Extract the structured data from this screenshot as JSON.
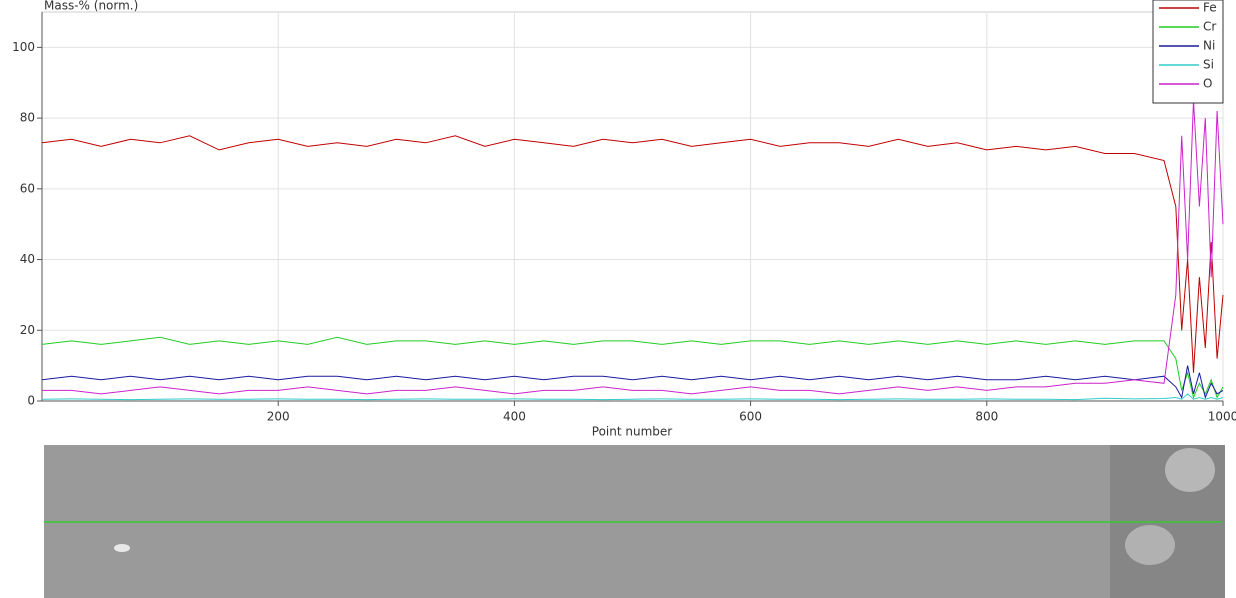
{
  "chart_data": {
    "type": "line",
    "title": "Mass-% (norm.)",
    "x_label": "Point number",
    "x": [
      0,
      25,
      50,
      75,
      100,
      125,
      150,
      175,
      200,
      225,
      250,
      275,
      300,
      325,
      350,
      375,
      400,
      425,
      450,
      475,
      500,
      525,
      550,
      575,
      600,
      625,
      650,
      675,
      700,
      725,
      750,
      775,
      800,
      825,
      850,
      875,
      900,
      925,
      950,
      960,
      965,
      970,
      975,
      980,
      985,
      990,
      995,
      1000
    ],
    "series": [
      {
        "name": "Fe",
        "color": "#c00000",
        "values": [
          73,
          74,
          72,
          74,
          73,
          75,
          71,
          73,
          74,
          72,
          73,
          72,
          74,
          73,
          75,
          72,
          74,
          73,
          72,
          74,
          73,
          74,
          72,
          73,
          74,
          72,
          73,
          73,
          72,
          74,
          72,
          73,
          71,
          72,
          71,
          72,
          70,
          70,
          68,
          55,
          20,
          40,
          8,
          35,
          15,
          45,
          12,
          30
        ]
      },
      {
        "name": "Cr",
        "color": "#22cc22",
        "values": [
          16,
          17,
          16,
          17,
          18,
          16,
          17,
          16,
          17,
          16,
          18,
          16,
          17,
          17,
          16,
          17,
          16,
          17,
          16,
          17,
          17,
          16,
          17,
          16,
          17,
          17,
          16,
          17,
          16,
          17,
          16,
          17,
          16,
          17,
          16,
          17,
          16,
          17,
          17,
          12,
          3,
          8,
          1,
          5,
          2,
          6,
          1,
          4
        ]
      },
      {
        "name": "Ni",
        "color": "#1a1aa0",
        "values": [
          6,
          7,
          6,
          7,
          6,
          7,
          6,
          7,
          6,
          7,
          7,
          6,
          7,
          6,
          7,
          6,
          7,
          6,
          7,
          7,
          6,
          7,
          6,
          7,
          6,
          7,
          6,
          7,
          6,
          7,
          6,
          7,
          6,
          6,
          7,
          6,
          7,
          6,
          7,
          4,
          1,
          10,
          2,
          8,
          1,
          5,
          2,
          3
        ]
      },
      {
        "name": "Si",
        "color": "#33cccc",
        "values": [
          0.5,
          0.6,
          0.5,
          0.4,
          0.5,
          0.6,
          0.5,
          0.5,
          0.6,
          0.5,
          0.5,
          0.4,
          0.5,
          0.6,
          0.5,
          0.5,
          0.6,
          0.5,
          0.5,
          0.4,
          0.5,
          0.6,
          0.5,
          0.5,
          0.6,
          0.5,
          0.5,
          0.4,
          0.5,
          0.6,
          0.5,
          0.5,
          0.6,
          0.5,
          0.5,
          0.4,
          0.8,
          0.6,
          0.7,
          1,
          0.5,
          2,
          0.5,
          1,
          0.5,
          1,
          0.5,
          1
        ]
      },
      {
        "name": "O",
        "color": "#cc22cc",
        "values": [
          3,
          3,
          2,
          3,
          4,
          3,
          2,
          3,
          3,
          4,
          3,
          2,
          3,
          3,
          4,
          3,
          2,
          3,
          3,
          4,
          3,
          3,
          2,
          3,
          4,
          3,
          3,
          2,
          3,
          4,
          3,
          4,
          3,
          4,
          4,
          5,
          5,
          6,
          5,
          30,
          75,
          40,
          85,
          55,
          80,
          35,
          82,
          50
        ]
      }
    ],
    "xlim": [
      0,
      1000
    ],
    "ylim": [
      0,
      110
    ],
    "xticks": [
      200,
      400,
      600,
      800,
      1000
    ],
    "yticks": [
      0,
      20,
      40,
      60,
      80,
      100
    ],
    "grid": true,
    "legend": "top-right"
  }
}
